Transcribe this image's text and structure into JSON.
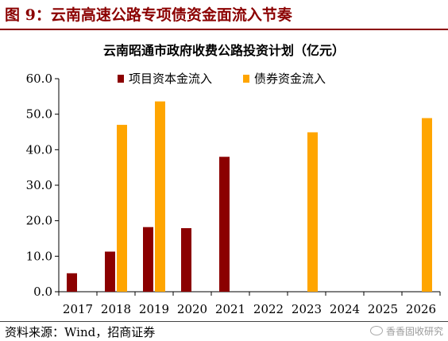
{
  "figure": {
    "title": "图 9：云南高速公路专项债资金面流入节奏",
    "accent_color": "#8b0000"
  },
  "source": "资料来源：Wind，招商证券",
  "watermark": "香香固收研究",
  "chart_data": {
    "type": "bar",
    "title": "云南昭通市政府收费公路投资计划（亿元）",
    "categories": [
      "2017",
      "2018",
      "2019",
      "2020",
      "2021",
      "2022",
      "2023",
      "2024",
      "2025",
      "2026"
    ],
    "series": [
      {
        "name": "项目资本金流入",
        "color": "#8b0000",
        "values": [
          5.2,
          11.3,
          18.2,
          17.9,
          38.0,
          0,
          0,
          0,
          0,
          0
        ]
      },
      {
        "name": "债券资金流入",
        "color": "#ffa500",
        "values": [
          0,
          47.0,
          53.6,
          0,
          0,
          0,
          44.9,
          0,
          0,
          48.9
        ]
      }
    ],
    "ylim": [
      0,
      60
    ],
    "yticks": [
      "0.0",
      "10.0",
      "20.0",
      "30.0",
      "40.0",
      "50.0",
      "60.0"
    ],
    "grid": false,
    "legend_position": "top"
  }
}
